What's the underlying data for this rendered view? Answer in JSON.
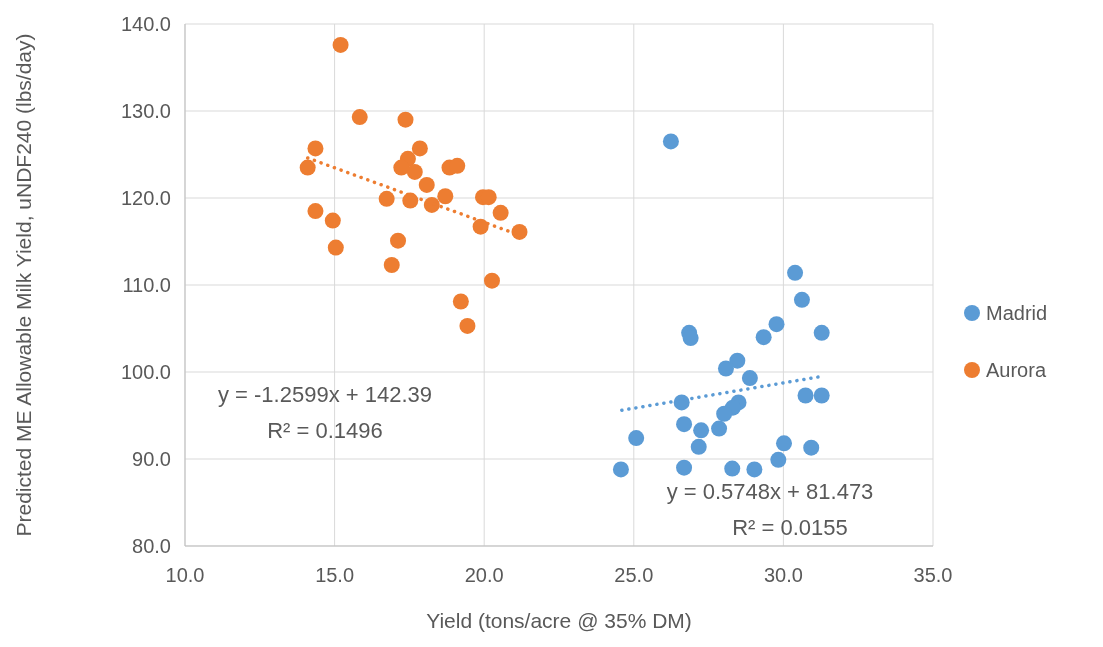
{
  "chart_data": {
    "type": "scatter",
    "xlabel": "Yield (tons/acre @ 35% DM)",
    "ylabel": "Predicted ME Allowable Milk Yield, uNDF240 (lbs/day)",
    "xlim": [
      10,
      35
    ],
    "xticks": [
      {
        "value": 10,
        "label": "10.0"
      },
      {
        "value": 15,
        "label": "15.0"
      },
      {
        "value": 20,
        "label": "20.0"
      },
      {
        "value": 25,
        "label": "25.0"
      },
      {
        "value": 30,
        "label": "30.0"
      },
      {
        "value": 35,
        "label": "35.0"
      }
    ],
    "ylim": [
      80,
      140
    ],
    "yticks": [
      {
        "value": 80,
        "label": "80.0"
      },
      {
        "value": 90,
        "label": "90.0"
      },
      {
        "value": 100,
        "label": "100.0"
      },
      {
        "value": 110,
        "label": "110.0"
      },
      {
        "value": 120,
        "label": "120.0"
      },
      {
        "value": 130,
        "label": "130.0"
      },
      {
        "value": 140,
        "label": "140.0"
      }
    ],
    "grid": true,
    "legend": "right",
    "marker": "circle",
    "series": [
      {
        "name": "Madrid",
        "color": "#5b9bd5",
        "x": [
          30.39,
          30.62,
          26.85,
          26.9,
          29.77,
          29.34,
          31.28,
          28.46,
          28.08,
          28.88,
          30.74,
          31.28,
          26.6,
          28.5,
          28.31,
          28.02,
          26.68,
          27.85,
          27.25,
          27.17,
          25.08,
          30.02,
          29.83,
          30.93,
          24.57,
          26.68,
          28.29,
          29.03,
          26.24
        ],
        "values": [
          111.4,
          108.3,
          104.5,
          103.9,
          105.5,
          104.0,
          104.5,
          101.3,
          100.4,
          99.3,
          97.3,
          97.3,
          96.5,
          96.5,
          95.9,
          95.2,
          94.0,
          93.5,
          93.3,
          91.4,
          92.4,
          91.8,
          89.9,
          91.3,
          88.8,
          89.0,
          88.9,
          88.8,
          126.5
        ]
      },
      {
        "name": "Aurora",
        "color": "#ed7d31",
        "x": [
          15.2,
          15.84,
          17.37,
          14.36,
          17.85,
          17.45,
          14.1,
          17.23,
          17.68,
          18.84,
          19.1,
          18.08,
          18.7,
          16.74,
          17.53,
          18.25,
          19.96,
          20.15,
          20.55,
          14.36,
          14.94,
          19.88,
          21.18,
          15.04,
          17.12,
          16.91,
          20.26,
          19.22,
          19.44
        ],
        "values": [
          137.6,
          129.3,
          129.0,
          125.7,
          125.7,
          124.5,
          123.5,
          123.5,
          123.0,
          123.5,
          123.7,
          121.5,
          120.2,
          119.9,
          119.7,
          119.2,
          120.1,
          120.1,
          118.3,
          118.5,
          117.4,
          116.7,
          116.1,
          114.3,
          115.1,
          112.3,
          110.5,
          108.1,
          105.3
        ]
      },
      {
        "type": "line",
        "color": "#ed7d31",
        "line_style": "dotted",
        "marker": "none",
        "x": [
          14.1,
          21.2
        ],
        "values": [
          124.6,
          115.7
        ]
      },
      {
        "type": "line",
        "color": "#5b9bd5",
        "line_style": "dotted",
        "marker": "none",
        "x": [
          24.6,
          31.3
        ],
        "values": [
          95.6,
          99.5
        ]
      }
    ],
    "annotations": [
      "y = -1.2599x + 142.39",
      "R² = 0.1496",
      "y = 0.5748x + 81.473",
      "R² = 0.0155"
    ]
  }
}
